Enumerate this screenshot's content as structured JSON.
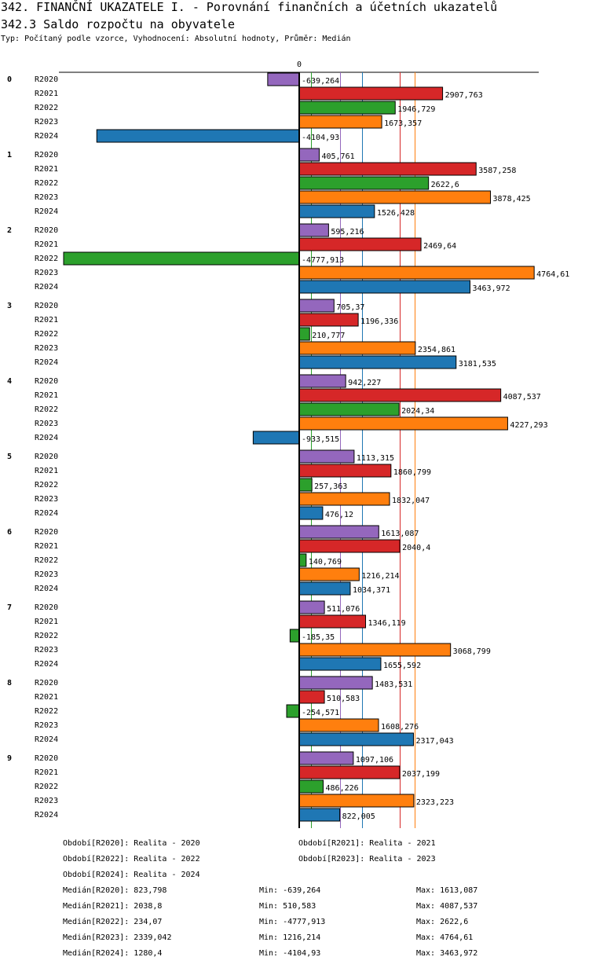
{
  "header": {
    "title": "342. FINANČNÍ UKAZATELE I. - Porovnání finančních a účetních ukazatelů",
    "subtitle": "342.3 Saldo rozpočtu na obyvatele",
    "info": "Typ: Počítaný podle vzorce, Vyhodnocení: Absolutní hodnoty, Průměr: Medián"
  },
  "chart_data": {
    "type": "bar",
    "orientation": "horizontal",
    "title": "342.3 Saldo rozpočtu na obyvatele",
    "zero_label": "0",
    "categories": [
      "0",
      "1",
      "2",
      "3",
      "4",
      "5",
      "6",
      "7",
      "8",
      "9"
    ],
    "series": [
      {
        "name": "R2020",
        "color": "#9467bd",
        "values": [
          -639.264,
          405.761,
          595.216,
          705.37,
          942.227,
          1113.315,
          1613.087,
          511.076,
          1483.531,
          1097.106
        ],
        "labels": [
          "-639,264",
          "405,761",
          "595,216",
          "705,37",
          "942,227",
          "1113,315",
          "1613,087",
          "511,076",
          "1483,531",
          "1097,106"
        ]
      },
      {
        "name": "R2021",
        "color": "#d62728",
        "values": [
          2907.763,
          3587.258,
          2469.64,
          1196.336,
          4087.537,
          1860.799,
          2040.4,
          1346.119,
          510.583,
          2037.199
        ],
        "labels": [
          "2907,763",
          "3587,258",
          "2469,64",
          "1196,336",
          "4087,537",
          "1860,799",
          "2040,4",
          "1346,119",
          "510,583",
          "2037,199"
        ]
      },
      {
        "name": "R2022",
        "color": "#2ca02c",
        "values": [
          1946.729,
          2622.6,
          -4777.913,
          210.777,
          2024.34,
          257.363,
          140.769,
          -185.35,
          -254.571,
          486.226
        ],
        "labels": [
          "1946,729",
          "2622,6",
          "-4777,913",
          "210,777",
          "2024,34",
          "257,363",
          "140,769",
          "-185,35",
          "-254,571",
          "486,226"
        ]
      },
      {
        "name": "R2023",
        "color": "#ff7f0e",
        "values": [
          1673.357,
          3878.425,
          4764.61,
          2354.861,
          4227.293,
          1832.047,
          1216.214,
          3068.799,
          1608.276,
          2323.223
        ],
        "labels": [
          "1673,357",
          "3878,425",
          "4764,61",
          "2354,861",
          "4227,293",
          "1832,047",
          "1216,214",
          "3068,799",
          "1608,276",
          "2323,223"
        ]
      },
      {
        "name": "R2024",
        "color": "#1f77b4",
        "values": [
          -4104.93,
          1526.428,
          3463.972,
          3181.535,
          -933.515,
          476.12,
          1034.371,
          1655.592,
          2317.043,
          822.005
        ],
        "labels": [
          "-4104,93",
          "1526,428",
          "3463,972",
          "3181,535",
          "-933,515",
          "476,12",
          "1034,371",
          "1655,592",
          "2317,043",
          "822,005"
        ]
      }
    ],
    "median_lines": [
      {
        "series": "R2022",
        "value": 234.07,
        "color": "#2ca02c"
      },
      {
        "series": "R2020",
        "value": 823.798,
        "color": "#9467bd"
      },
      {
        "series": "R2024",
        "value": 1280.4,
        "color": "#1f77b4"
      },
      {
        "series": "R2021",
        "value": 2038.8,
        "color": "#d62728"
      },
      {
        "series": "R2023",
        "value": 2339.042,
        "color": "#ff7f0e"
      }
    ],
    "xlim": [
      -4777.913,
      4764.61
    ],
    "grid": false,
    "legend": "bottom"
  },
  "legend": {
    "periods": [
      "Období[R2020]: Realita - 2020",
      "Období[R2021]: Realita - 2021",
      "Období[R2022]: Realita - 2022",
      "Období[R2023]: Realita - 2023",
      "Období[R2024]: Realita - 2024"
    ],
    "stats": [
      {
        "median": "Medián[R2020]: 823,798",
        "min": "Min: -639,264",
        "max": "Max: 1613,087"
      },
      {
        "median": "Medián[R2021]: 2038,8",
        "min": "Min: 510,583",
        "max": "Max: 4087,537"
      },
      {
        "median": "Medián[R2022]: 234,07",
        "min": "Min: -4777,913",
        "max": "Max: 2622,6"
      },
      {
        "median": "Medián[R2023]: 2339,042",
        "min": "Min: 1216,214",
        "max": "Max: 4764,61"
      },
      {
        "median": "Medián[R2024]: 1280,4",
        "min": "Min: -4104,93",
        "max": "Max: 3463,972"
      }
    ]
  }
}
